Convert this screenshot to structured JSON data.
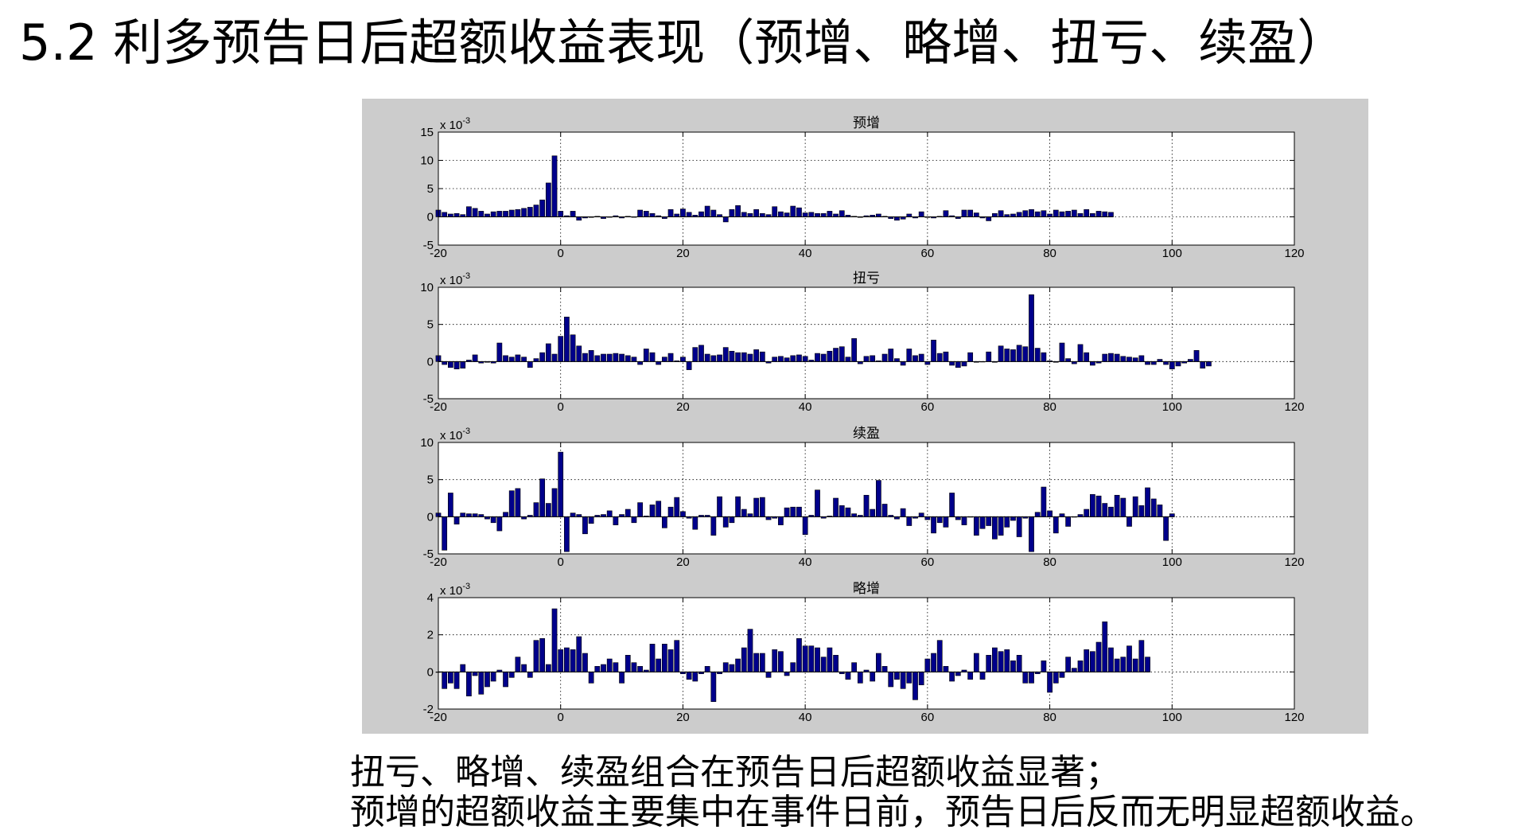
{
  "slide": {
    "title": "5.2 利多预告日后超额收益表现（预增、略增、扭亏、续盈）",
    "caption_line1": "扭亏、略增、续盈组合在预告日后超额收益显著；",
    "caption_line2": "预增的超额收益主要集中在事件日前，预告日后反而无明显超额收益。"
  },
  "colors": {
    "panel_bg": "#cccccc",
    "bar_fill": "#00008b",
    "bar_stroke": "#000000",
    "axes_bg": "#ffffff",
    "grid": "#000000"
  },
  "chart_data": [
    {
      "type": "bar",
      "title": "预增",
      "exponent_label": "x 10^-3",
      "x_ticks": [
        -20,
        0,
        20,
        40,
        60,
        80,
        100,
        120
      ],
      "y_ticks": [
        -5,
        0,
        5,
        10,
        15
      ],
      "xlim": [
        -20,
        120
      ],
      "ylim": [
        -5,
        15
      ],
      "grid": true,
      "x_start": -20,
      "values": [
        1.2,
        0.8,
        0.5,
        0.6,
        0.4,
        1.8,
        1.5,
        1.0,
        0.5,
        0.9,
        1.0,
        1.0,
        1.2,
        1.3,
        1.5,
        1.7,
        2.1,
        3.0,
        6.0,
        10.8,
        1.0,
        0.2,
        1.0,
        -0.6,
        -0.2,
        -0.1,
        0.1,
        -0.3,
        0.0,
        0.2,
        -0.2,
        0.1,
        0.0,
        1.2,
        1.0,
        0.6,
        0.2,
        -0.3,
        1.3,
        0.5,
        1.4,
        0.8,
        0.3,
        0.9,
        1.9,
        1.2,
        0.4,
        -0.9,
        1.3,
        2.0,
        0.8,
        0.6,
        1.3,
        0.6,
        0.4,
        1.8,
        0.9,
        0.7,
        1.9,
        1.6,
        0.7,
        0.8,
        0.6,
        0.6,
        1.0,
        0.5,
        1.1,
        0.3,
        0.1,
        -0.1,
        0.2,
        0.3,
        0.5,
        0.1,
        -0.3,
        -0.6,
        -0.4,
        0.5,
        -0.2,
        0.9,
        -0.1,
        -0.2,
        0.1,
        1.1,
        0.2,
        -0.3,
        1.2,
        1.2,
        0.7,
        -0.2,
        -0.7,
        0.6,
        1.1,
        0.4,
        0.5,
        0.8,
        1.1,
        1.3,
        0.9,
        1.1,
        0.5,
        1.2,
        0.9,
        1.0,
        1.2,
        0.6,
        1.3,
        0.6,
        1.0,
        0.9,
        0.8
      ]
    },
    {
      "type": "bar",
      "title": "扭亏",
      "exponent_label": "x 10^-3",
      "x_ticks": [
        -20,
        0,
        20,
        40,
        60,
        80,
        100,
        120
      ],
      "y_ticks": [
        -5,
        0,
        5,
        10
      ],
      "xlim": [
        -20,
        120
      ],
      "ylim": [
        -5,
        10
      ],
      "grid": true,
      "x_start": -20,
      "values": [
        0.8,
        -0.4,
        -0.8,
        -1.0,
        -0.9,
        0.2,
        0.9,
        -0.2,
        -0.1,
        -0.2,
        2.5,
        0.8,
        0.6,
        0.9,
        0.6,
        -0.8,
        0.4,
        1.2,
        2.4,
        1.0,
        3.4,
        6.0,
        3.6,
        2.1,
        1.1,
        1.5,
        0.8,
        1.0,
        1.0,
        1.1,
        1.0,
        0.8,
        0.6,
        -0.4,
        1.7,
        1.2,
        -0.4,
        0.6,
        1.1,
        0.1,
        0.6,
        -1.1,
        1.9,
        2.2,
        1.0,
        0.8,
        0.9,
        1.9,
        1.4,
        1.2,
        1.2,
        1.0,
        1.6,
        1.3,
        -0.2,
        0.6,
        0.7,
        0.5,
        0.8,
        0.9,
        0.7,
        0.2,
        1.1,
        1.0,
        1.4,
        1.8,
        2.0,
        0.6,
        3.1,
        -0.3,
        0.7,
        0.8,
        0.1,
        1.0,
        1.7,
        0.4,
        -0.5,
        1.7,
        0.8,
        1.0,
        -0.4,
        2.9,
        1.1,
        1.3,
        -0.5,
        -0.8,
        -0.6,
        1.2,
        -0.1,
        0.0,
        1.3,
        -0.1,
        2.1,
        1.7,
        1.6,
        2.2,
        2.0,
        9.0,
        1.8,
        1.2,
        0.1,
        -0.1,
        2.5,
        0.4,
        -0.3,
        2.3,
        1.2,
        -0.5,
        -0.2,
        1.0,
        1.1,
        1.0,
        0.7,
        0.6,
        0.5,
        0.8,
        -0.4,
        -0.4,
        0.3,
        -0.4,
        -1.0,
        -0.6,
        -0.2,
        0.3,
        1.5,
        -0.9,
        -0.6
      ]
    },
    {
      "type": "bar",
      "title": "续盈",
      "exponent_label": "x 10^-3",
      "x_ticks": [
        -20,
        0,
        20,
        40,
        60,
        80,
        100,
        120
      ],
      "y_ticks": [
        -5,
        0,
        5,
        10
      ],
      "xlim": [
        -20,
        120
      ],
      "ylim": [
        -5,
        10
      ],
      "grid": true,
      "x_start": -20,
      "values": [
        0.5,
        -4.5,
        3.2,
        -1.0,
        0.5,
        0.4,
        0.4,
        0.3,
        -0.3,
        -0.8,
        -1.9,
        0.6,
        3.5,
        3.8,
        -0.3,
        0.2,
        1.9,
        5.1,
        1.8,
        3.8,
        8.7,
        -4.7,
        0.5,
        0.3,
        -2.3,
        -0.9,
        0.2,
        0.3,
        0.8,
        -1.1,
        0.3,
        1.0,
        -0.8,
        1.9,
        0.1,
        1.6,
        2.1,
        -1.5,
        1.3,
        2.6,
        0.7,
        -0.2,
        -1.7,
        0.2,
        0.2,
        -2.5,
        2.7,
        -1.4,
        -0.8,
        2.7,
        1.0,
        0.4,
        2.5,
        2.6,
        -0.4,
        -0.2,
        -1.1,
        1.2,
        1.3,
        1.3,
        -2.4,
        0.2,
        3.6,
        -0.2,
        0.1,
        2.5,
        1.5,
        1.2,
        0.4,
        0.2,
        2.9,
        1.0,
        4.9,
        1.7,
        0.2,
        -0.3,
        1.1,
        -1.2,
        -0.2,
        0.5,
        -0.4,
        -2.2,
        -0.8,
        -1.4,
        3.2,
        -0.4,
        -1.1,
        0.0,
        -2.5,
        -1.6,
        -1.2,
        -3.0,
        -2.5,
        -1.4,
        -0.5,
        -2.7,
        -0.2,
        -4.7,
        0.6,
        4.0,
        0.8,
        -2.2,
        0.4,
        -1.3,
        0.0,
        0.3,
        1.0,
        3.0,
        2.8,
        1.8,
        1.3,
        2.9,
        2.5,
        -1.3,
        2.7,
        1.5,
        3.9,
        2.4,
        1.6,
        -3.2,
        0.4
      ]
    },
    {
      "type": "bar",
      "title": "略增",
      "exponent_label": "x 10^-3",
      "x_ticks": [
        -20,
        0,
        20,
        40,
        60,
        80,
        100,
        120
      ],
      "y_ticks": [
        -2,
        0,
        2,
        4
      ],
      "xlim": [
        -20,
        120
      ],
      "ylim": [
        -2,
        4
      ],
      "grid": true,
      "x_start": -20,
      "values": [
        0.0,
        -0.9,
        -0.6,
        -0.9,
        0.4,
        -1.3,
        -0.2,
        -1.2,
        -0.8,
        -0.5,
        0.1,
        -0.8,
        -0.3,
        0.8,
        0.4,
        -0.3,
        1.7,
        1.8,
        0.4,
        3.4,
        1.2,
        1.3,
        1.2,
        1.9,
        1.0,
        -0.6,
        0.3,
        0.4,
        0.7,
        0.5,
        -0.6,
        0.9,
        0.5,
        0.3,
        0.1,
        1.5,
        0.7,
        1.5,
        1.2,
        1.7,
        -0.1,
        -0.4,
        -0.5,
        -0.1,
        0.3,
        -1.6,
        -0.1,
        0.5,
        0.4,
        0.7,
        1.3,
        2.3,
        1.0,
        1.0,
        -0.3,
        1.2,
        1.1,
        -0.2,
        0.5,
        1.8,
        1.4,
        1.4,
        1.3,
        0.8,
        1.3,
        0.9,
        -0.1,
        -0.4,
        0.5,
        -0.6,
        0.1,
        -0.5,
        1.0,
        0.3,
        -0.8,
        -0.4,
        -0.9,
        -0.6,
        -1.5,
        -0.7,
        0.7,
        1.0,
        1.7,
        0.3,
        -0.5,
        -0.2,
        0.1,
        -0.4,
        1.0,
        -0.4,
        0.9,
        1.3,
        1.1,
        1.2,
        0.6,
        0.9,
        -0.6,
        -0.6,
        -0.1,
        0.6,
        -1.1,
        -0.6,
        -0.3,
        0.8,
        0.2,
        0.6,
        1.2,
        1.1,
        1.6,
        2.7,
        1.3,
        0.7,
        0.8,
        1.4,
        0.7,
        1.7,
        0.8
      ]
    }
  ]
}
